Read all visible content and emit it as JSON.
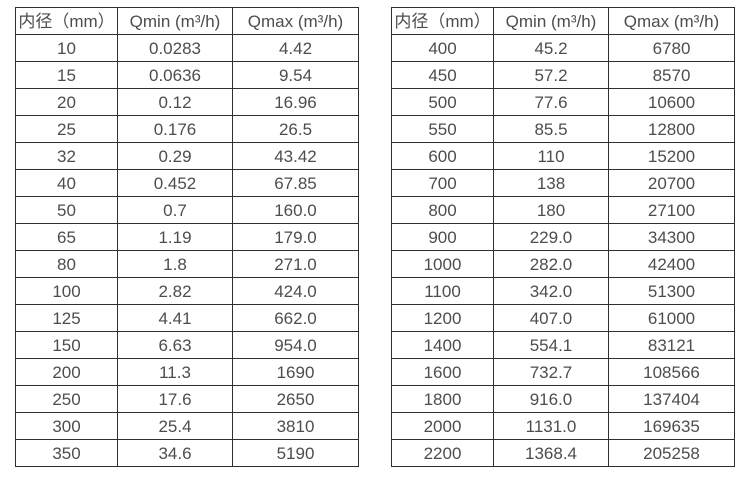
{
  "page": {
    "background_color": "#ffffff",
    "text_color": "#4d4d4d",
    "border_color": "#2e2e2e"
  },
  "chart_data": [
    {
      "type": "table",
      "title": "",
      "headers": [
        "内径（mm）",
        "Qmin (m³/h)",
        "Qmax (m³/h)"
      ],
      "rows": [
        [
          "10",
          "0.0283",
          "4.42"
        ],
        [
          "15",
          "0.0636",
          "9.54"
        ],
        [
          "20",
          "0.12",
          "16.96"
        ],
        [
          "25",
          "0.176",
          "26.5"
        ],
        [
          "32",
          "0.29",
          "43.42"
        ],
        [
          "40",
          "0.452",
          "67.85"
        ],
        [
          "50",
          "0.7",
          "160.0"
        ],
        [
          "65",
          "1.19",
          "179.0"
        ],
        [
          "80",
          "1.8",
          "271.0"
        ],
        [
          "100",
          "2.82",
          "424.0"
        ],
        [
          "125",
          "4.41",
          "662.0"
        ],
        [
          "150",
          "6.63",
          "954.0"
        ],
        [
          "200",
          "11.3",
          "1690"
        ],
        [
          "250",
          "17.6",
          "2650"
        ],
        [
          "300",
          "25.4",
          "3810"
        ],
        [
          "350",
          "34.6",
          "5190"
        ]
      ]
    },
    {
      "type": "table",
      "title": "",
      "headers": [
        "内径（mm）",
        "Qmin (m³/h)",
        "Qmax (m³/h)"
      ],
      "rows": [
        [
          "400",
          "45.2",
          "6780"
        ],
        [
          "450",
          "57.2",
          "8570"
        ],
        [
          "500",
          "77.6",
          "10600"
        ],
        [
          "550",
          "85.5",
          "12800"
        ],
        [
          "600",
          "110",
          "15200"
        ],
        [
          "700",
          "138",
          "20700"
        ],
        [
          "800",
          "180",
          "27100"
        ],
        [
          "900",
          "229.0",
          "34300"
        ],
        [
          "1000",
          "282.0",
          "42400"
        ],
        [
          "1100",
          "342.0",
          "51300"
        ],
        [
          "1200",
          "407.0",
          "61000"
        ],
        [
          "1400",
          "554.1",
          "83121"
        ],
        [
          "1600",
          "732.7",
          "108566"
        ],
        [
          "1800",
          "916.0",
          "137404"
        ],
        [
          "2000",
          "1131.0",
          "169635"
        ],
        [
          "2200",
          "1368.4",
          "205258"
        ]
      ]
    }
  ]
}
